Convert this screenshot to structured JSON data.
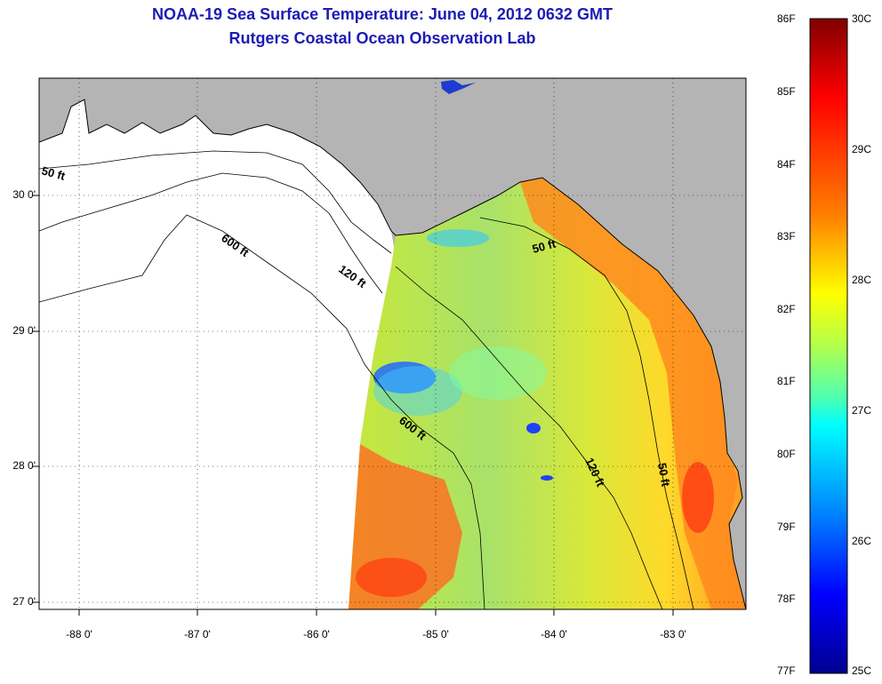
{
  "title": {
    "line1": "NOAA-19 Sea Surface Temperature:  June 04, 2012 0632 GMT",
    "line2": "Rutgers Coastal Ocean Observation Lab"
  },
  "map": {
    "x_ticks": [
      "-88 0'",
      "-87 0'",
      "-86 0'",
      "-85 0'",
      "-84 0'",
      "-83 0'"
    ],
    "y_ticks": [
      "30 0'",
      "29 0'",
      "28 0'",
      "27 0'"
    ],
    "contours": {
      "c50_west": "50 ft",
      "c600_north": "600 ft",
      "c120_north": "120 ft",
      "c50_east": "50 ft",
      "c600_south": "600 ft",
      "c120_south": "120 ft",
      "c50_south": "50 ft"
    },
    "colors": {
      "land": "#b4b4b4",
      "water_nodata": "#ffffff",
      "title": "#1c1cb4"
    }
  },
  "colorbar": {
    "fahrenheit": [
      "86F",
      "85F",
      "84F",
      "83F",
      "82F",
      "81F",
      "80F",
      "79F",
      "78F",
      "77F"
    ],
    "celsius": [
      "30C",
      "29C",
      "28C",
      "27C",
      "26C",
      "25C"
    ],
    "colors": [
      "#800000",
      "#ff0000",
      "#ff7f00",
      "#ffff00",
      "#7fff7f",
      "#00ffff",
      "#007fff",
      "#0000ff",
      "#00008f"
    ]
  }
}
